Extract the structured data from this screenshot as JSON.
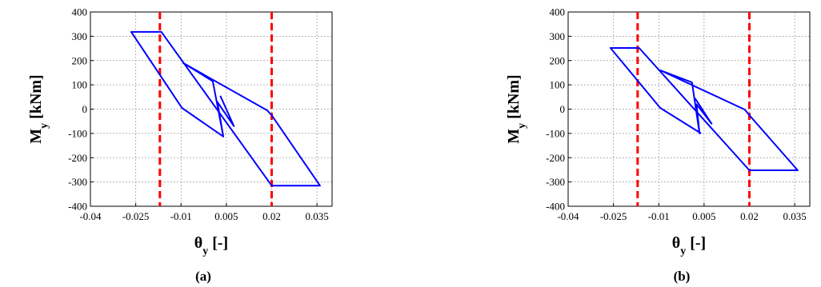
{
  "chart_data": [
    {
      "type": "line",
      "caption": "(a)",
      "xlabel": {
        "symbol": "θ",
        "sub": "y",
        "unit": " [-]"
      },
      "ylabel": {
        "symbol": "M",
        "sub": "y",
        "unit": " [kNm]"
      },
      "xlim": [
        -0.04,
        0.04
      ],
      "ylim": [
        -400,
        400
      ],
      "xticks": [
        -0.04,
        -0.025,
        -0.01,
        0.005,
        0.02,
        0.035
      ],
      "xtick_labels": [
        "-0.04",
        "-0.025",
        "-0.01",
        "0.005",
        "0.02",
        "0.035"
      ],
      "yticks": [
        400,
        300,
        200,
        100,
        0,
        -100,
        -200,
        -300,
        -400
      ],
      "ytick_labels": [
        "400",
        "300",
        "200",
        "100",
        "0",
        "-100",
        "-200",
        "-300",
        "-400"
      ],
      "grid": true,
      "series_color": "#0000ff",
      "limit_color": "#ff0000",
      "limit_lines": [
        -0.017,
        0.02
      ],
      "points": [
        [
          0.003,
          55
        ],
        [
          0.0075,
          -70
        ],
        [
          0.002,
          30
        ],
        [
          0.004,
          -113
        ],
        [
          0.0005,
          115
        ],
        [
          -0.0093,
          190
        ],
        [
          0.0185,
          -5
        ],
        [
          0.02,
          -25
        ],
        [
          0.036,
          -315
        ],
        [
          0.02,
          -315
        ],
        [
          -0.0165,
          318
        ],
        [
          -0.0265,
          318
        ],
        [
          -0.0097,
          5
        ],
        [
          0.004,
          -113
        ]
      ]
    },
    {
      "type": "line",
      "caption": "(b)",
      "xlabel": {
        "symbol": "θ",
        "sub": "y",
        "unit": " [-]"
      },
      "ylabel": {
        "symbol": "M",
        "sub": "y",
        "unit": " [kNm]"
      },
      "xlim": [
        -0.04,
        0.04
      ],
      "ylim": [
        -400,
        400
      ],
      "xticks": [
        -0.04,
        -0.025,
        -0.01,
        0.005,
        0.02,
        0.035
      ],
      "xtick_labels": [
        "-0.04",
        "-0.025",
        "-0.01",
        "0.005",
        "0.02",
        "0.035"
      ],
      "yticks": [
        400,
        300,
        200,
        100,
        0,
        -100,
        -200,
        -300,
        -400
      ],
      "ytick_labels": [
        "400",
        "300",
        "200",
        "100",
        "0",
        "-100",
        "-200",
        "-300",
        "-400"
      ],
      "grid": true,
      "series_color": "#0000ff",
      "limit_color": "#ff0000",
      "limit_lines": [
        -0.017,
        0.02
      ],
      "points": [
        [
          0.002,
          45
        ],
        [
          0.0075,
          -60
        ],
        [
          0.0025,
          20
        ],
        [
          0.0035,
          -100
        ],
        [
          0.001,
          110
        ],
        [
          -0.0095,
          160
        ],
        [
          0.0185,
          -2
        ],
        [
          0.02,
          -25
        ],
        [
          0.036,
          -252
        ],
        [
          0.02,
          -252
        ],
        [
          -0.0165,
          252
        ],
        [
          -0.026,
          252
        ],
        [
          -0.0095,
          5
        ],
        [
          0.004,
          -100
        ]
      ]
    }
  ]
}
